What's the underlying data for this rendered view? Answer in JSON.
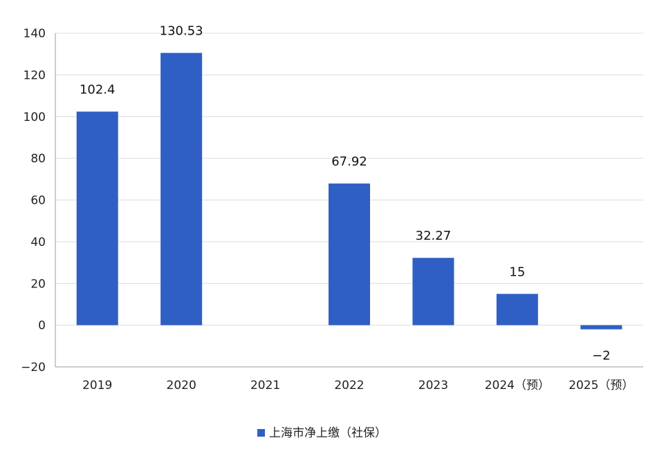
{
  "chart_data": {
    "type": "bar",
    "categories": [
      "2019",
      "2020",
      "2021",
      "2022",
      "2023",
      "2024（预）",
      "2025（预）"
    ],
    "series": [
      {
        "name": "上海市净上缴（社保）",
        "values": [
          102.4,
          130.53,
          null,
          67.92,
          32.27,
          15,
          -2
        ],
        "labels": [
          "102.4",
          "130.53",
          "",
          "67.92",
          "32.27",
          "15",
          "−2"
        ]
      }
    ],
    "y_ticks": [
      "140",
      "120",
      "100",
      "80",
      "60",
      "40",
      "20",
      "0",
      "−20"
    ],
    "y_tick_values": [
      140,
      120,
      100,
      80,
      60,
      40,
      20,
      0,
      -20
    ],
    "ylim": [
      -20,
      140
    ],
    "grid": true,
    "legend_position": "bottom-center",
    "bar_color": "#2f5fc4"
  }
}
